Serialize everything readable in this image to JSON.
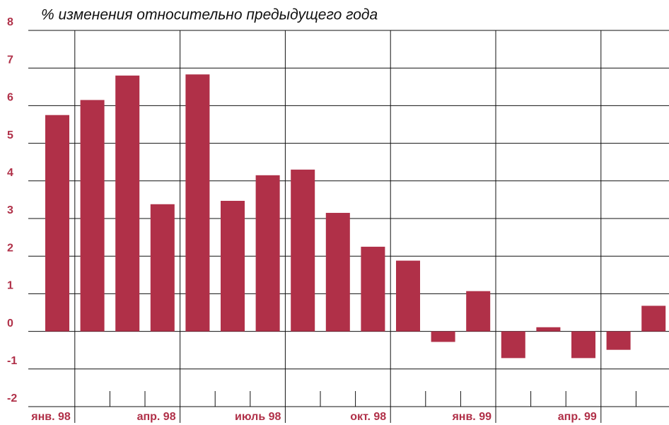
{
  "chart_data": {
    "type": "bar",
    "title": "% изменения относительно предыдущего года",
    "categories": [
      "янв. 98",
      null,
      null,
      "апр. 98",
      null,
      null,
      "июль 98",
      null,
      null,
      "окт. 98",
      null,
      null,
      "янв. 99",
      null,
      null,
      "апр. 99",
      null,
      null
    ],
    "values": [
      5.75,
      6.15,
      6.8,
      3.38,
      6.83,
      3.47,
      4.15,
      4.3,
      3.15,
      2.25,
      1.88,
      -0.28,
      1.07,
      -0.71,
      0.11,
      -0.71,
      -0.49,
      0.68
    ],
    "color": "#b03048",
    "ylim": [
      -2,
      8
    ],
    "yticks": [
      8,
      7,
      6,
      5,
      4,
      3,
      2,
      1,
      0,
      -1,
      -2
    ],
    "grid": true
  }
}
